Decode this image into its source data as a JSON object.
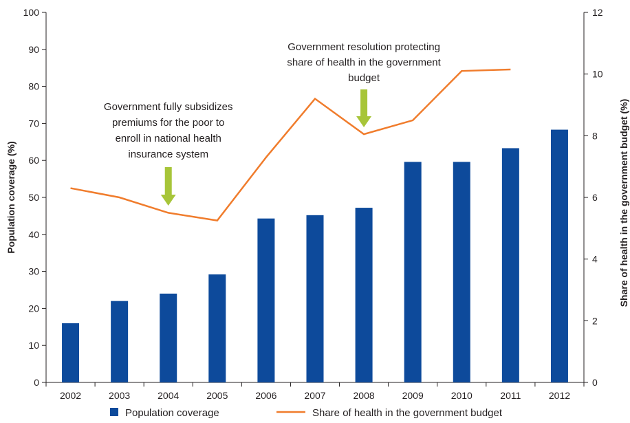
{
  "chart_data": {
    "type": "bar",
    "categories": [
      "2002",
      "2003",
      "2004",
      "2005",
      "2006",
      "2007",
      "2008",
      "2009",
      "2010",
      "2011",
      "2012"
    ],
    "series": [
      {
        "name": "Population coverage",
        "type": "bar",
        "axis": "left",
        "color": "#0d4a9b",
        "values": [
          16,
          22,
          24,
          29.2,
          44.3,
          45.2,
          47.2,
          59.6,
          59.6,
          63.3,
          68.3
        ]
      },
      {
        "name": "Share of health in the government budget",
        "type": "line",
        "axis": "right",
        "color": "#f07c2c",
        "values": [
          6.3,
          6.0,
          5.5,
          5.25,
          7.3,
          9.2,
          8.05,
          8.5,
          10.1,
          10.15,
          null
        ]
      }
    ],
    "ylabel": "Population coverage (%)",
    "y2label": "Share of health in the government budget (%)",
    "ylim": [
      0,
      100
    ],
    "y2lim": [
      0,
      12
    ],
    "yticks": [
      "0",
      "10",
      "20",
      "30",
      "40",
      "50",
      "60",
      "70",
      "80",
      "90",
      "100"
    ],
    "y2ticks": [
      "0",
      "2",
      "4",
      "6",
      "8",
      "10",
      "12"
    ],
    "grid": false,
    "legend_position": "bottom",
    "annotations": [
      {
        "category": "2004",
        "arrow_color": "#a7c539",
        "lines": [
          "Government fully subsidizes",
          "premiums for the poor to",
          "enroll in national health",
          "insurance system"
        ]
      },
      {
        "category": "2008",
        "arrow_color": "#a7c539",
        "lines": [
          "Government resolution protecting",
          "share of health in the government",
          "budget"
        ]
      }
    ]
  }
}
